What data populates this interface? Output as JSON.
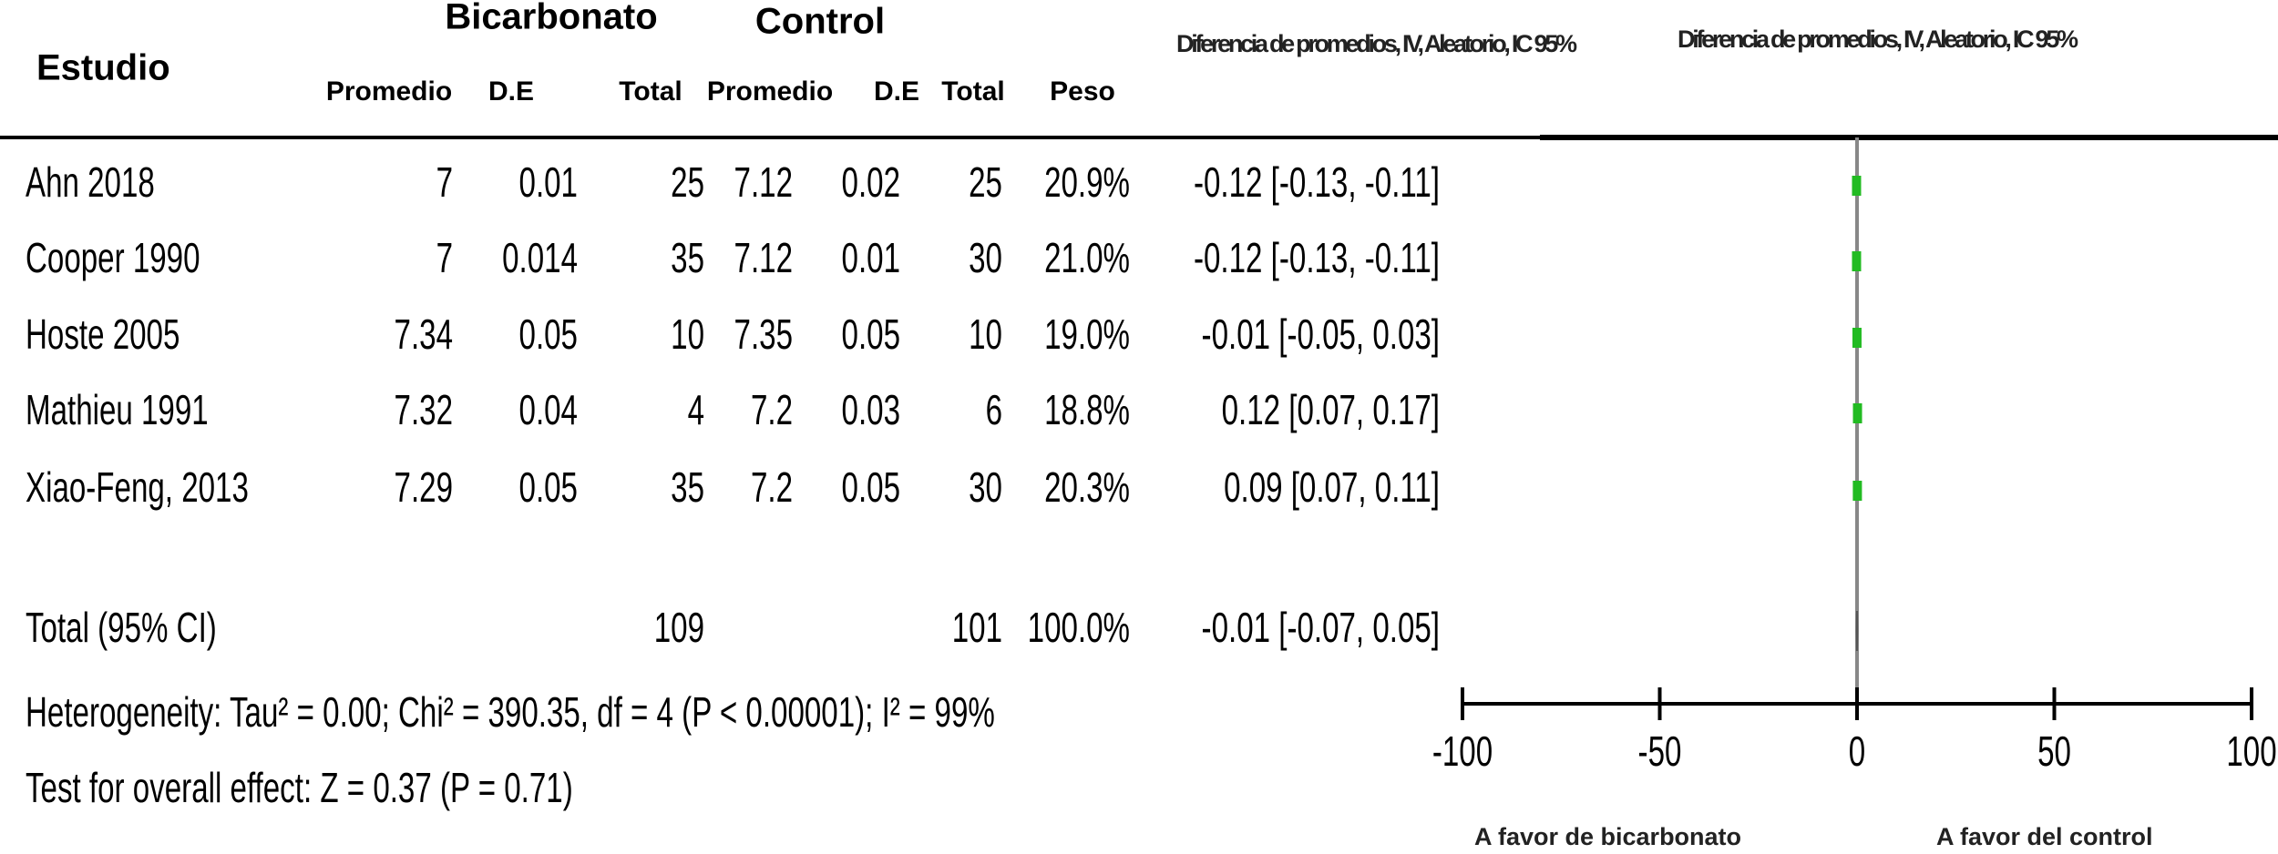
{
  "header": {
    "study": "Estudio",
    "group1": "Bicarbonato",
    "group2": "Control",
    "columns": [
      "Promedio",
      "D.E",
      "Total",
      "Promedio",
      "D.E",
      "Total",
      "Peso"
    ],
    "effect": "Diferencia de promedios, IV, Aleatorio, IC 95%",
    "plot": "Diferencia de promedios, IV, Aleatorio, IC 95%"
  },
  "table": {
    "rows": [
      [
        "Ahn 2018",
        "7",
        "0.01",
        "25",
        "7.12",
        "0.02",
        "25",
        "20.9%"
      ],
      [
        "Cooper 1990",
        "7",
        "0.014",
        "35",
        "7.12",
        "0.01",
        "30",
        "21.0%"
      ],
      [
        "Hoste 2005",
        "7.34",
        "0.05",
        "10",
        "7.35",
        "0.05",
        "10",
        "19.0%"
      ],
      [
        "Mathieu 1991",
        "7.32",
        "0.04",
        "4",
        "7.2",
        "0.03",
        "6",
        "18.8%"
      ],
      [
        "Xiao-Feng,  2013",
        "7.29",
        "0.05",
        "35",
        "7.2",
        "0.05",
        "30",
        "20.3%"
      ]
    ],
    "total": {
      "label": "Total (95% CI)",
      "total1": "109",
      "total2": "101",
      "weight": "100.0%"
    }
  },
  "heterogeneity": "Heterogeneity: Tau² = 0.00; Chi² = 390.35, df = 4 (P < 0.00001); I² = 99%",
  "overall": "Test for overall effect: Z = 0.37 (P = 0.71)",
  "chart_data": {
    "type": "forest",
    "values": [
      -0.12,
      -0.12,
      -0.01,
      0.12,
      0.09
    ],
    "lower": [
      -0.13,
      -0.13,
      -0.05,
      0.07,
      0.07
    ],
    "upper": [
      -0.11,
      -0.11,
      0.03,
      0.17,
      0.11
    ],
    "value_labels": [
      "-0.12 [-0.13, -0.11]",
      "-0.12 [-0.13, -0.11]",
      "-0.01 [-0.05, 0.03]",
      "0.12 [0.07, 0.17]",
      "0.09 [0.07, 0.11]"
    ],
    "total": {
      "value": -0.01,
      "lower": -0.07,
      "upper": 0.05,
      "label": "-0.01 [-0.07, 0.05]"
    },
    "xlim": [
      -100,
      100
    ],
    "xticks": [
      -100,
      -50,
      0,
      50,
      100
    ],
    "color": "#22bb22",
    "favors_left": "A favor de bicarbonato",
    "favors_right": "A favor del control"
  }
}
